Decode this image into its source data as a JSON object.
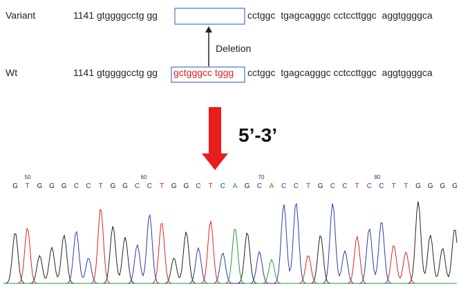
{
  "variant": {
    "label": "Variant",
    "prefix": "1141 gtggggcctg gg",
    "suffix": "cctggc  tgagcagggc cctccttggc  aggtggggca"
  },
  "annotation": "Deletion",
  "wt": {
    "label": "Wt",
    "prefix": "1141 gtggggcctg gg",
    "deleted": "gctgggcc tggg",
    "suffix": "cctggc  tgagcagggc cctccttggc  aggtggggca"
  },
  "direction": "5’-3’",
  "chromatogram": {
    "positions": [
      "50",
      "60",
      "70",
      "80"
    ],
    "bases": [
      "G",
      "T",
      "G",
      "G",
      "G",
      "C",
      "C",
      "T",
      "G",
      "G",
      "C",
      "C",
      "T",
      "G",
      "G",
      "C",
      "T",
      "C",
      "A",
      "G",
      "C",
      "A",
      "C",
      "C",
      "T",
      "G",
      "C",
      "C",
      "T",
      "C",
      "C",
      "T",
      "T",
      "G",
      "G",
      "G",
      "G"
    ]
  }
}
